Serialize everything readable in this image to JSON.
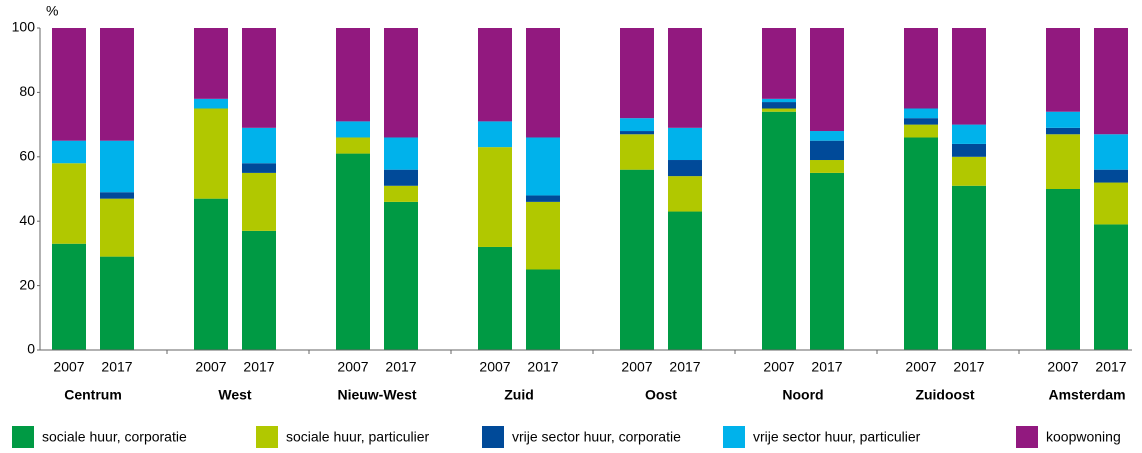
{
  "chart_data": {
    "type": "stacked_bar",
    "y_label": "%",
    "groups": [
      "Centrum",
      "West",
      "Nieuw-West",
      "Zuid",
      "Oost",
      "Noord",
      "Zuidoost",
      "Amsterdam"
    ],
    "categories": [
      "2007",
      "2017",
      "2007",
      "2017",
      "2007",
      "2017",
      "2007",
      "2017",
      "2007",
      "2017",
      "2007",
      "2017",
      "2007",
      "2017",
      "2007",
      "2017"
    ],
    "series": [
      {
        "name": "sociale huur, corporatie",
        "color": "#009a44",
        "values": [
          33,
          29,
          47,
          37,
          61,
          46,
          32,
          25,
          56,
          43,
          74,
          55,
          66,
          51,
          50,
          39
        ]
      },
      {
        "name": "sociale huur, particulier",
        "color": "#b1c800",
        "values": [
          25,
          18,
          28,
          18,
          5,
          5,
          31,
          21,
          11,
          11,
          1,
          4,
          4,
          9,
          17,
          13
        ]
      },
      {
        "name": "vrije sector huur, corporatie",
        "color": "#004a99",
        "values": [
          0,
          2,
          0,
          3,
          0,
          5,
          0,
          2,
          1,
          5,
          2,
          6,
          2,
          4,
          2,
          4
        ]
      },
      {
        "name": "vrije sector huur, particulier",
        "color": "#00b2eb",
        "values": [
          7,
          16,
          3,
          11,
          5,
          10,
          8,
          18,
          4,
          10,
          1,
          3,
          3,
          6,
          5,
          11
        ]
      },
      {
        "name": "koopwoning",
        "color": "#92197f",
        "values": [
          35,
          35,
          22,
          31,
          29,
          34,
          29,
          34,
          28,
          31,
          22,
          32,
          25,
          30,
          26,
          33
        ]
      }
    ],
    "ylim": [
      0,
      100
    ],
    "yticks": [
      0,
      20,
      40,
      60,
      80,
      100
    ]
  }
}
